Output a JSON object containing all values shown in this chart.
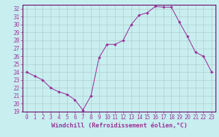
{
  "x": [
    0,
    1,
    2,
    3,
    4,
    5,
    6,
    7,
    8,
    9,
    10,
    11,
    12,
    13,
    14,
    15,
    16,
    17,
    18,
    19,
    20,
    21,
    22,
    23
  ],
  "y": [
    24.0,
    23.5,
    23.0,
    22.0,
    21.5,
    21.2,
    20.5,
    19.2,
    21.0,
    25.8,
    27.5,
    27.5,
    28.0,
    30.0,
    31.2,
    31.5,
    32.3,
    32.2,
    32.2,
    30.3,
    28.5,
    26.5,
    26.0,
    24.0
  ],
  "line_color": "#993399",
  "marker": "D",
  "markersize": 2.0,
  "linewidth": 0.8,
  "bg_color": "#c8eef0",
  "grid_color": "#b0cccc",
  "xlabel": "Windchill (Refroidissement éolien,°C)",
  "xlabel_fontsize": 6.5,
  "tick_fontsize": 5.5,
  "ylim": [
    19,
    32.5
  ],
  "xlim": [
    -0.5,
    23.5
  ],
  "yticks": [
    19,
    20,
    21,
    22,
    23,
    24,
    25,
    26,
    27,
    28,
    29,
    30,
    31,
    32
  ],
  "xticks": [
    0,
    1,
    2,
    3,
    4,
    5,
    6,
    7,
    8,
    9,
    10,
    11,
    12,
    13,
    14,
    15,
    16,
    17,
    18,
    19,
    20,
    21,
    22,
    23
  ],
  "spine_color": "#660066",
  "tick_color": "#993399",
  "label_color": "#993399"
}
